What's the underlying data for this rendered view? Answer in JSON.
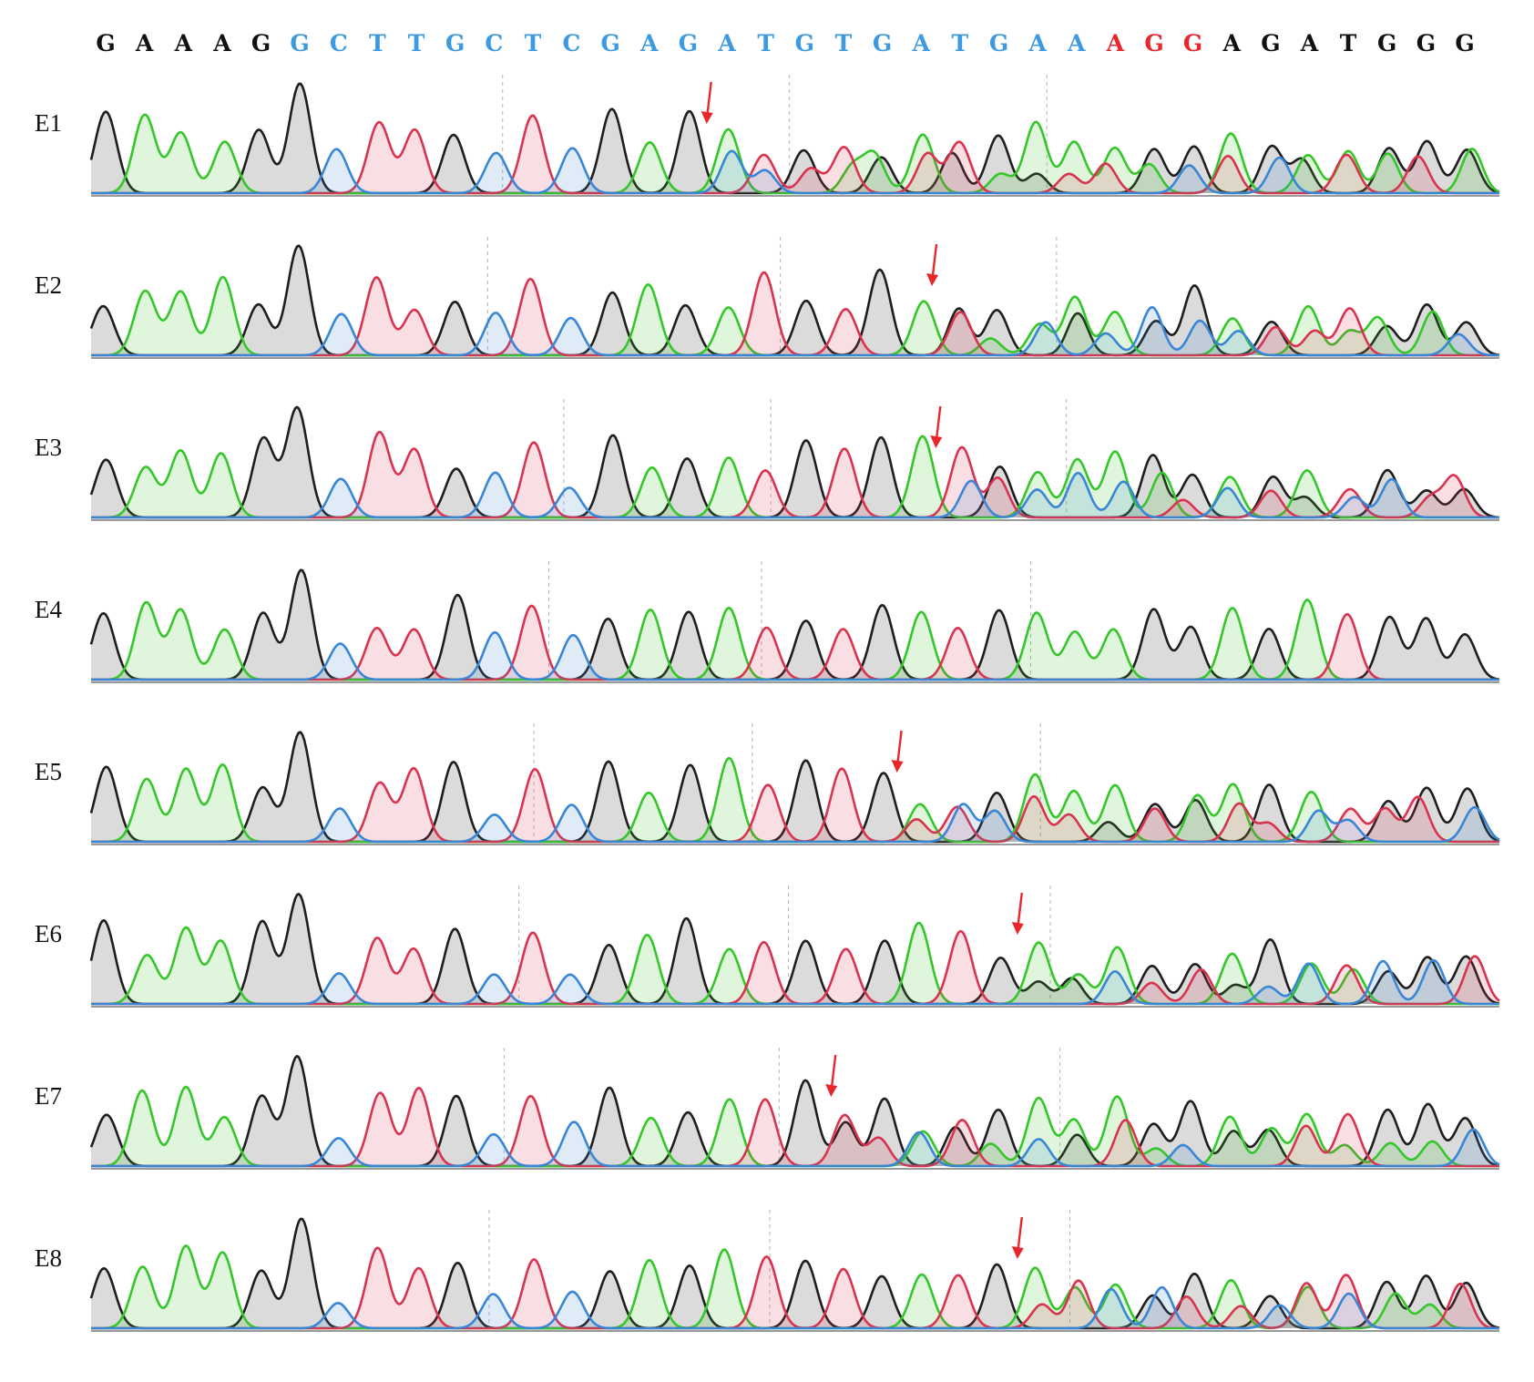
{
  "figure": {
    "reference_sequence": [
      {
        "base": "G",
        "color": "#111111"
      },
      {
        "base": "A",
        "color": "#111111"
      },
      {
        "base": "A",
        "color": "#111111"
      },
      {
        "base": "A",
        "color": "#111111"
      },
      {
        "base": "G",
        "color": "#111111"
      },
      {
        "base": "G",
        "color": "#3d9ae0"
      },
      {
        "base": "C",
        "color": "#3d9ae0"
      },
      {
        "base": "T",
        "color": "#3d9ae0"
      },
      {
        "base": "T",
        "color": "#3d9ae0"
      },
      {
        "base": "G",
        "color": "#3d9ae0"
      },
      {
        "base": "C",
        "color": "#3d9ae0"
      },
      {
        "base": "T",
        "color": "#3d9ae0"
      },
      {
        "base": "C",
        "color": "#3d9ae0"
      },
      {
        "base": "G",
        "color": "#3d9ae0"
      },
      {
        "base": "A",
        "color": "#3d9ae0"
      },
      {
        "base": "G",
        "color": "#3d9ae0"
      },
      {
        "base": "A",
        "color": "#3d9ae0"
      },
      {
        "base": "T",
        "color": "#3d9ae0"
      },
      {
        "base": "G",
        "color": "#3d9ae0"
      },
      {
        "base": "T",
        "color": "#3d9ae0"
      },
      {
        "base": "G",
        "color": "#3d9ae0"
      },
      {
        "base": "A",
        "color": "#3d9ae0"
      },
      {
        "base": "T",
        "color": "#3d9ae0"
      },
      {
        "base": "G",
        "color": "#3d9ae0"
      },
      {
        "base": "A",
        "color": "#3d9ae0"
      },
      {
        "base": "A",
        "color": "#3d9ae0"
      },
      {
        "base": "A",
        "color": "#e8262b"
      },
      {
        "base": "G",
        "color": "#e8262b"
      },
      {
        "base": "G",
        "color": "#e8262b"
      },
      {
        "base": "A",
        "color": "#111111"
      },
      {
        "base": "G",
        "color": "#111111"
      },
      {
        "base": "A",
        "color": "#111111"
      },
      {
        "base": "T",
        "color": "#111111"
      },
      {
        "base": "G",
        "color": "#111111"
      },
      {
        "base": "G",
        "color": "#111111"
      },
      {
        "base": "G",
        "color": "#111111"
      }
    ],
    "base_colors": {
      "G": "#1e1e1e",
      "A": "#35c62a",
      "T": "#d8344f",
      "C": "#3a86d6"
    },
    "arrow_color": "#e8262b",
    "lanes": [
      {
        "label": "E1",
        "arrow_at_base": 15.5
      },
      {
        "label": "E2",
        "arrow_at_base": 21.3
      },
      {
        "label": "E3",
        "arrow_at_base": 21.4
      },
      {
        "label": "E4",
        "arrow_at_base": null
      },
      {
        "label": "E5",
        "arrow_at_base": 20.4
      },
      {
        "label": "E6",
        "arrow_at_base": 23.5
      },
      {
        "label": "E7",
        "arrow_at_base": 18.7
      },
      {
        "label": "E8",
        "arrow_at_base": 23.5
      }
    ]
  }
}
